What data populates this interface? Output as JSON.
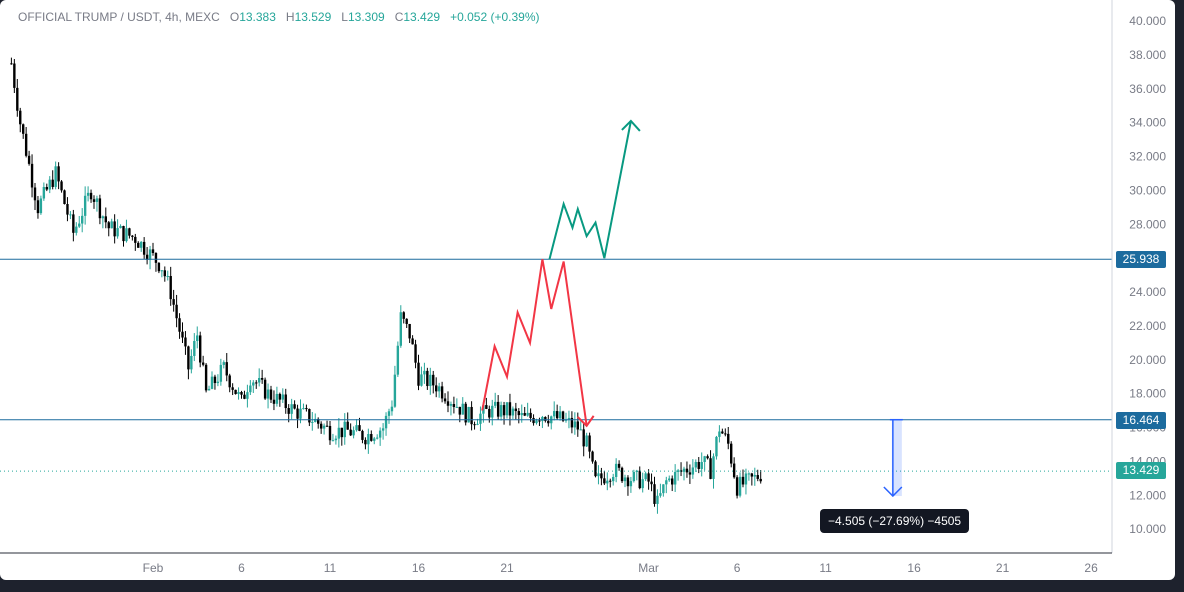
{
  "legend": {
    "symbol": "OFFICIAL TRUMP / USDT, 4h, MEXC",
    "o_label": "O",
    "open": "13.383",
    "h_label": "H",
    "high": "13.529",
    "l_label": "L",
    "low": "13.309",
    "c_label": "C",
    "close": "13.429",
    "change": "+0.052 (+0.39%)"
  },
  "price_tags": {
    "upper_level": "25.938",
    "lower_level": "16.464",
    "last_price": "13.429"
  },
  "measure_label": "−4.505 (−27.69%) −4505",
  "colors": {
    "up": "#26a69a",
    "down": "#000000",
    "level_line": "#1c6b9e",
    "bull_path": "#089981",
    "bear_path": "#f23645",
    "measure": "#2962ff",
    "last_price_tag": "#26a69a"
  },
  "chart_data": {
    "type": "candlestick",
    "title": "OFFICIAL TRUMP / USDT, 4h, MEXC",
    "ylim": [
      8.5,
      40.5
    ],
    "y_ticks": [
      "40.000",
      "38.000",
      "36.000",
      "34.000",
      "32.000",
      "30.000",
      "28.000",
      "26.000",
      "24.000",
      "22.000",
      "20.000",
      "18.000",
      "16.000",
      "14.000",
      "12.000",
      "10.000"
    ],
    "x_ticks": [
      "Feb",
      "6",
      "11",
      "16",
      "21",
      "Mar",
      "6",
      "11",
      "16",
      "21",
      "26"
    ],
    "horizontal_levels": [
      25.938,
      16.464
    ],
    "last_price": 13.429,
    "path_keypoints": [
      [
        28.0,
        19.0
      ],
      [
        29.5,
        15.0
      ],
      [
        30.3,
        17.0
      ],
      [
        30.7,
        14.5
      ],
      [
        31.3,
        15.8
      ]
    ],
    "bull_projection": [
      25.938,
      29.2,
      27.8,
      28.9,
      27.3,
      28.1,
      26.0,
      34.1
    ],
    "bear_projection": [
      17.0,
      20.8,
      19.0,
      22.8,
      21.0,
      25.938,
      23.0,
      25.8,
      16.1
    ],
    "measure": {
      "from": 16.464,
      "to": 11.959,
      "change": -4.505,
      "percent": -27.69
    }
  }
}
